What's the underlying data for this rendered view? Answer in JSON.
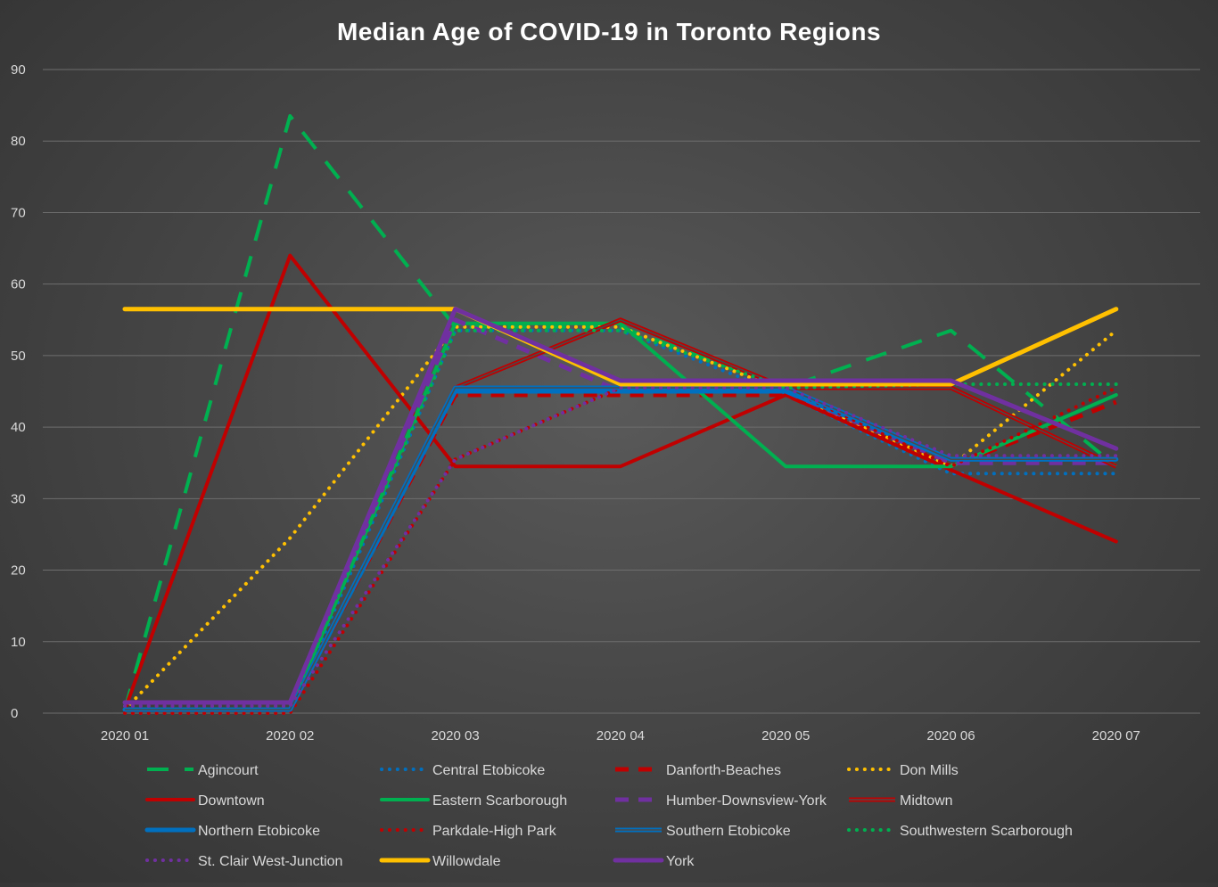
{
  "chart_data": {
    "type": "line",
    "title": "Median Age of COVID-19 in Toronto Regions",
    "xlabel": "",
    "ylabel": "",
    "categories": [
      "2020 01",
      "2020 02",
      "2020 03",
      "2020 04",
      "2020 05",
      "2020 06",
      "2020 07"
    ],
    "ylim": [
      0,
      90
    ],
    "yticks": [
      0,
      10,
      20,
      30,
      40,
      50,
      60,
      70,
      80,
      90
    ],
    "grid": true,
    "legend_position": "bottom",
    "series": [
      {
        "name": "Agincourt",
        "color": "#00b050",
        "style": "longdash",
        "width": 4,
        "values": [
          0.5,
          83.5,
          54,
          54,
          45.5,
          53.5,
          34.5
        ]
      },
      {
        "name": "Central Etobicoke",
        "color": "#0070c0",
        "style": "dot",
        "width": 4,
        "values": [
          0,
          0,
          53.5,
          53.5,
          44.5,
          33.5,
          33.5
        ]
      },
      {
        "name": "Danforth-Beaches",
        "color": "#c00000",
        "style": "dash",
        "width": 5,
        "values": [
          0.5,
          0.5,
          44.5,
          44.5,
          44.5,
          34.5,
          43.5
        ]
      },
      {
        "name": "Don Mills",
        "color": "#ffc000",
        "style": "dot",
        "width": 4,
        "values": [
          0.5,
          24.5,
          54,
          54,
          45,
          34.5,
          53.5
        ]
      },
      {
        "name": "Downtown",
        "color": "#c00000",
        "style": "solid",
        "width": 4,
        "values": [
          0.5,
          64,
          34.5,
          34.5,
          44.5,
          34,
          24
        ]
      },
      {
        "name": "Eastern Scarborough",
        "color": "#00b050",
        "style": "solid",
        "width": 4,
        "values": [
          0.5,
          0.5,
          54.5,
          54.5,
          34.5,
          34.5,
          44.5
        ]
      },
      {
        "name": "Humber-Downsview-York",
        "color": "#7030a0",
        "style": "dash",
        "width": 5,
        "values": [
          1.5,
          1.5,
          55,
          45,
          45,
          35,
          35
        ]
      },
      {
        "name": "Midtown",
        "color": "#c00000",
        "style": "double",
        "width": 5,
        "values": [
          0.5,
          0.5,
          45.5,
          55,
          45.5,
          45.5,
          34.5
        ]
      },
      {
        "name": "Northern Etobicoke",
        "color": "#0070c0",
        "style": "solid",
        "width": 5,
        "values": [
          0.5,
          0.5,
          45,
          45,
          45,
          35.5,
          35.5
        ]
      },
      {
        "name": "Parkdale-High Park",
        "color": "#c00000",
        "style": "dot",
        "width": 4,
        "values": [
          0,
          0,
          35.5,
          45.5,
          45.5,
          34.5,
          45.5
        ]
      },
      {
        "name": "Southern Etobicoke",
        "color": "#0070c0",
        "style": "double",
        "width": 5,
        "values": [
          0.5,
          0.5,
          45.5,
          45.5,
          45.5,
          35.5,
          35.5
        ]
      },
      {
        "name": "Southwestern Scarborough",
        "color": "#00b050",
        "style": "dot",
        "width": 4,
        "values": [
          1,
          1,
          53.5,
          53.5,
          45.5,
          46,
          46
        ]
      },
      {
        "name": "St. Clair West-Junction",
        "color": "#7030a0",
        "style": "dot",
        "width": 4,
        "values": [
          1,
          1,
          35.5,
          45.5,
          45.5,
          36,
          36
        ]
      },
      {
        "name": "Willowdale",
        "color": "#ffc000",
        "style": "solid",
        "width": 5,
        "values": [
          56.5,
          56.5,
          56.5,
          46,
          46,
          46,
          56.5
        ]
      },
      {
        "name": "York",
        "color": "#7030a0",
        "style": "solid",
        "width": 5,
        "values": [
          1.5,
          1.5,
          56.5,
          46.5,
          46.5,
          46.5,
          37
        ]
      }
    ]
  }
}
